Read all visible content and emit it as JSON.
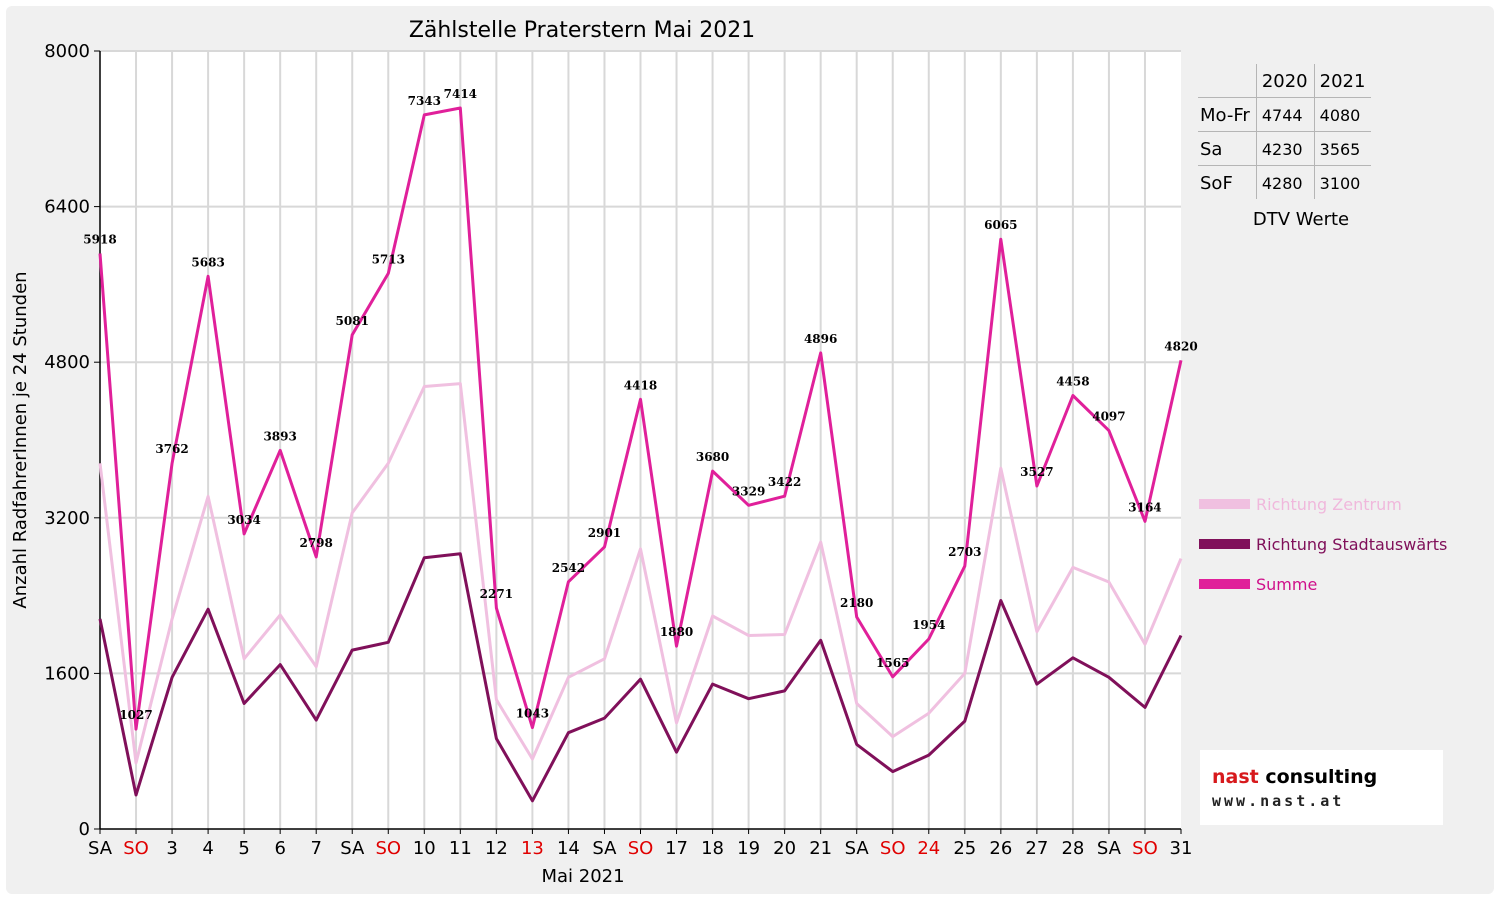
{
  "chart_data": {
    "type": "line",
    "title": "Zählstelle Praterstern Mai 2021",
    "xlabel": "Mai 2021",
    "ylabel": "Anzahl RadfahrerInnen je 24 Stunden",
    "ylim": [
      0,
      8000
    ],
    "yticks": [
      0,
      1600,
      3200,
      4800,
      6400,
      8000
    ],
    "grid": true,
    "legend_position": "right",
    "categories": [
      "SA",
      "SO",
      "3",
      "4",
      "5",
      "6",
      "7",
      "SA",
      "SO",
      "10",
      "11",
      "12",
      "13",
      "14",
      "SA",
      "SO",
      "17",
      "18",
      "19",
      "20",
      "21",
      "SA",
      "SO",
      "24",
      "25",
      "26",
      "27",
      "28",
      "SA",
      "SO",
      "31"
    ],
    "category_colors": [
      "#000000",
      "#e00000",
      "#000000",
      "#000000",
      "#000000",
      "#000000",
      "#000000",
      "#000000",
      "#e00000",
      "#000000",
      "#000000",
      "#000000",
      "#e00000",
      "#000000",
      "#000000",
      "#e00000",
      "#000000",
      "#000000",
      "#000000",
      "#000000",
      "#000000",
      "#000000",
      "#e00000",
      "#e00000",
      "#000000",
      "#000000",
      "#000000",
      "#000000",
      "#000000",
      "#e00000",
      "#000000"
    ],
    "series": [
      {
        "name": "Richtung Zentrum",
        "color": "#f0c0e0",
        "values": [
          3760,
          680,
          2160,
          3420,
          1750,
          2200,
          1670,
          3250,
          3760,
          4550,
          4580,
          1330,
          720,
          1560,
          1750,
          2880,
          1090,
          2190,
          1990,
          2000,
          2950,
          1290,
          950,
          1190,
          1600,
          3710,
          2030,
          2690,
          2540,
          1900,
          2780
        ]
      },
      {
        "name": "Richtung Stadtauswärts",
        "color": "#80105a",
        "values": [
          2160,
          350,
          1560,
          2260,
          1290,
          1690,
          1120,
          1840,
          1920,
          2790,
          2830,
          930,
          290,
          990,
          1140,
          1540,
          790,
          1490,
          1340,
          1420,
          1940,
          870,
          590,
          760,
          1110,
          2350,
          1490,
          1760,
          1560,
          1250,
          1990
        ]
      },
      {
        "name": "Summe",
        "color": "#e0209a",
        "values": [
          5918,
          1027,
          3762,
          5683,
          3034,
          3893,
          2798,
          5081,
          5713,
          7343,
          7414,
          2271,
          1043,
          2542,
          2901,
          4418,
          1880,
          3680,
          3329,
          3422,
          4896,
          2180,
          1565,
          1954,
          2703,
          6065,
          3527,
          4458,
          4097,
          3164,
          4820
        ]
      }
    ],
    "data_labels": [
      "5918",
      "1027",
      "3762",
      "5683",
      "3034",
      "3893",
      "2798",
      "5081",
      "5713",
      "7343",
      "7414",
      "2271",
      "1043",
      "2542",
      "2901",
      "4418",
      "1880",
      "3680",
      "3329",
      "3422",
      "4896",
      "2180",
      "1565",
      "1954",
      "2703",
      "6065",
      "3527",
      "4458",
      "4097",
      "3164",
      "4820"
    ]
  },
  "dtv_table": {
    "header": [
      "",
      "2020",
      "2021"
    ],
    "rows": [
      {
        "label": "Mo-Fr",
        "v2020": "4744",
        "v2021": "4080"
      },
      {
        "label": "Sa",
        "v2020": "4230",
        "v2021": "3565"
      },
      {
        "label": "SoF",
        "v2020": "4280",
        "v2021": "3100"
      }
    ],
    "caption": "DTV Werte"
  },
  "logo": {
    "part1": "nast",
    "part2": " consulting",
    "url_text": "www.nast.at"
  }
}
